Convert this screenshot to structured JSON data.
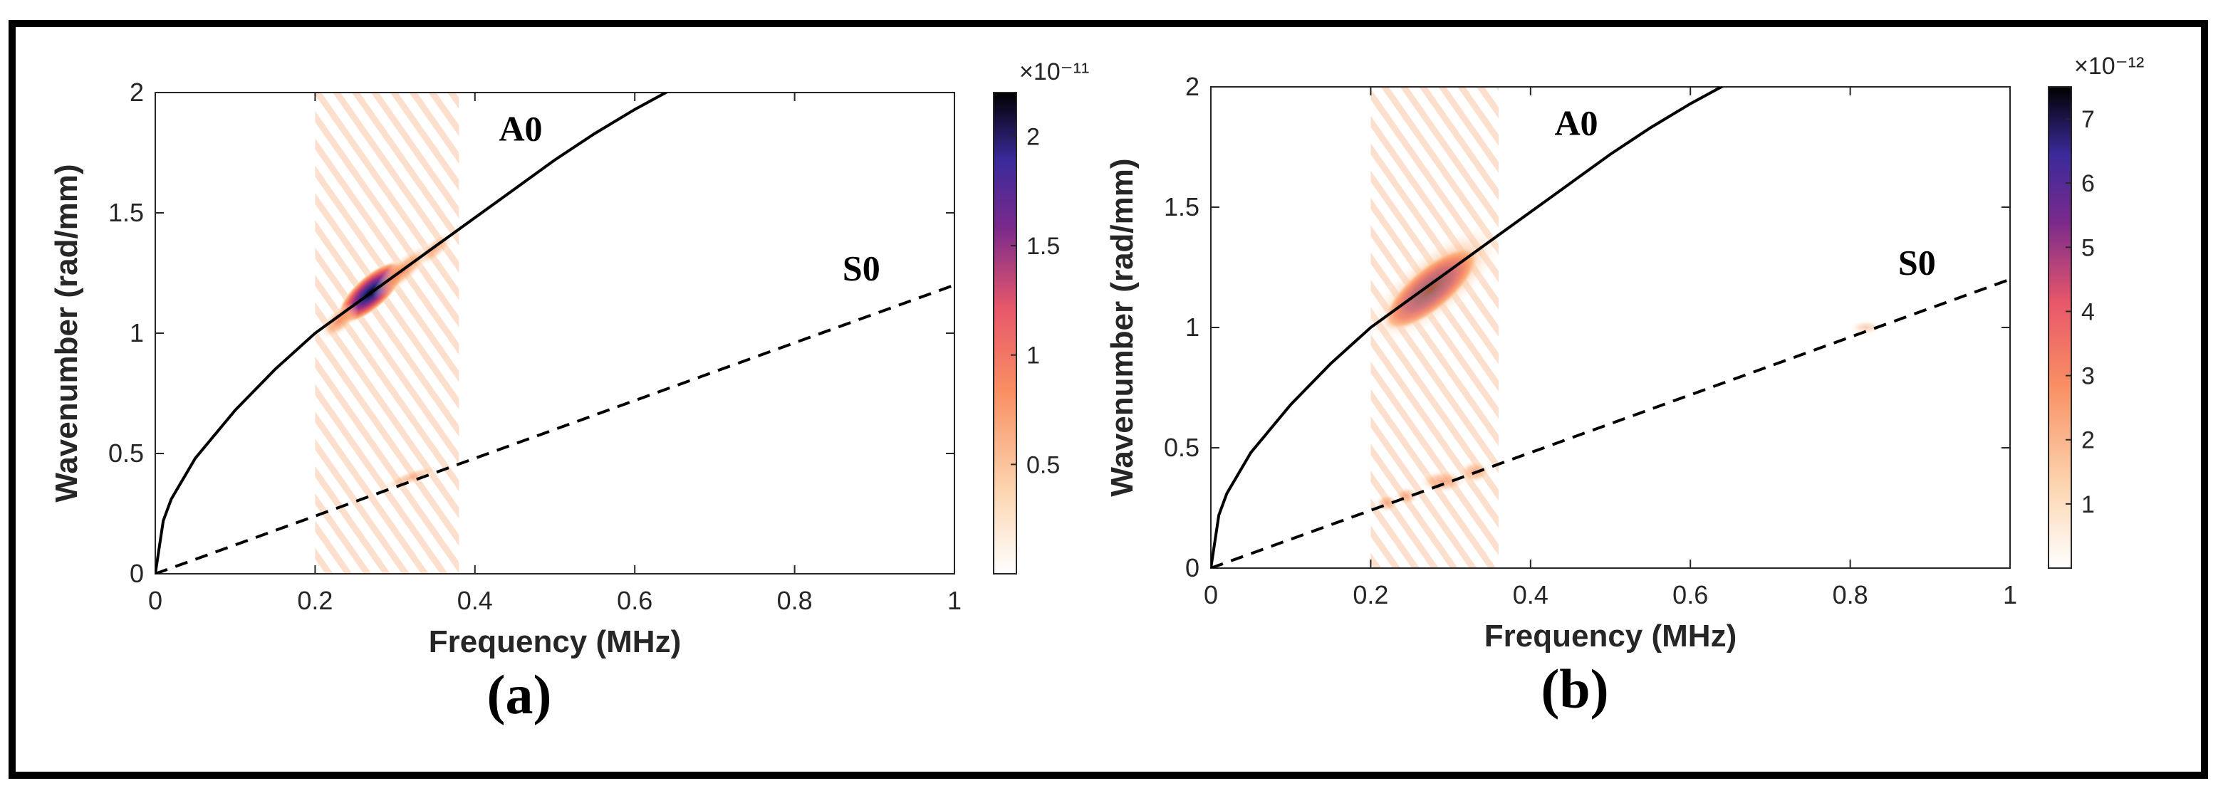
{
  "chart_data": [
    {
      "type": "heatmap",
      "panel_label": "(a)",
      "xlabel": "Frequency (MHz)",
      "ylabel": "Wavenumber (rad/mm)",
      "xlim": [
        0,
        1
      ],
      "ylim": [
        0,
        2
      ],
      "xticks": [
        "0",
        "0.2",
        "0.4",
        "0.6",
        "0.8",
        "1"
      ],
      "yticks": [
        "0",
        "0.5",
        "1",
        "1.5",
        "2"
      ],
      "colorbar": {
        "exponent": "×10⁻¹¹",
        "ticks": [
          "0.5",
          "1",
          "1.5",
          "2"
        ],
        "tick_values": [
          0.5,
          1,
          1.5,
          2
        ],
        "max": 2.2
      },
      "curves": [
        {
          "name": "A0",
          "style": "solid",
          "color": "#000000",
          "x": [
            0,
            0.01,
            0.02,
            0.05,
            0.1,
            0.15,
            0.2,
            0.25,
            0.3,
            0.35,
            0.4,
            0.45,
            0.5,
            0.55,
            0.6,
            0.65
          ],
          "y": [
            0,
            0.22,
            0.31,
            0.48,
            0.68,
            0.85,
            1.0,
            1.12,
            1.24,
            1.36,
            1.48,
            1.6,
            1.72,
            1.83,
            1.93,
            2.02
          ]
        },
        {
          "name": "S0",
          "style": "dashed",
          "color": "#000000",
          "x": [
            0,
            1
          ],
          "y": [
            0,
            1.2
          ]
        }
      ],
      "energy_band": {
        "f_range": [
          0.2,
          0.38
        ]
      },
      "energy_spots": [
        {
          "f": 0.27,
          "k": 1.17,
          "df": 0.055,
          "dk": 0.07,
          "level": 1.0,
          "angle": -42
        },
        {
          "f": 0.31,
          "k": 1.26,
          "df": 0.05,
          "dk": 0.05,
          "level": 0.55,
          "angle": -42
        },
        {
          "f": 0.23,
          "k": 1.05,
          "df": 0.03,
          "dk": 0.05,
          "level": 0.55,
          "angle": -42
        },
        {
          "f": 0.35,
          "k": 1.35,
          "df": 0.03,
          "dk": 0.04,
          "level": 0.3,
          "angle": -42
        },
        {
          "f": 0.32,
          "k": 0.4,
          "df": 0.04,
          "dk": 0.03,
          "level": 0.2,
          "angle": -20
        }
      ]
    },
    {
      "type": "heatmap",
      "panel_label": "(b)",
      "xlabel": "Frequency (MHz)",
      "ylabel": "Wavenumber (rad/mm)",
      "xlim": [
        0,
        1
      ],
      "ylim": [
        0,
        2
      ],
      "xticks": [
        "0",
        "0.2",
        "0.4",
        "0.6",
        "0.8",
        "1"
      ],
      "yticks": [
        "0",
        "0.5",
        "1",
        "1.5",
        "2"
      ],
      "colorbar": {
        "exponent": "×10⁻¹²",
        "ticks": [
          "1",
          "2",
          "3",
          "4",
          "5",
          "6",
          "7"
        ],
        "tick_values": [
          1,
          2,
          3,
          4,
          5,
          6,
          7
        ],
        "max": 7.5
      },
      "curves": [
        {
          "name": "A0",
          "style": "solid",
          "color": "#000000",
          "x": [
            0,
            0.01,
            0.02,
            0.05,
            0.1,
            0.15,
            0.2,
            0.25,
            0.3,
            0.35,
            0.4,
            0.45,
            0.5,
            0.55,
            0.6,
            0.65
          ],
          "y": [
            0,
            0.22,
            0.31,
            0.48,
            0.68,
            0.85,
            1.0,
            1.12,
            1.24,
            1.36,
            1.48,
            1.6,
            1.72,
            1.83,
            1.93,
            2.02
          ]
        },
        {
          "name": "S0",
          "style": "dashed",
          "color": "#000000",
          "x": [
            0,
            1
          ],
          "y": [
            0,
            1.2
          ]
        }
      ],
      "energy_band": {
        "f_range": [
          0.2,
          0.36
        ]
      },
      "energy_spots": [
        {
          "f": 0.275,
          "k": 1.16,
          "df": 0.075,
          "dk": 0.09,
          "level": 1.0,
          "angle": -40
        },
        {
          "f": 0.28,
          "k": 1.18,
          "df": 0.11,
          "dk": 0.14,
          "level": 0.35,
          "angle": -40
        },
        {
          "f": 0.22,
          "k": 0.27,
          "df": 0.015,
          "dk": 0.04,
          "level": 0.3,
          "angle": 0
        },
        {
          "f": 0.245,
          "k": 0.3,
          "df": 0.015,
          "dk": 0.04,
          "level": 0.3,
          "angle": 0
        },
        {
          "f": 0.29,
          "k": 0.36,
          "df": 0.03,
          "dk": 0.05,
          "level": 0.35,
          "angle": 0
        },
        {
          "f": 0.33,
          "k": 0.4,
          "df": 0.02,
          "dk": 0.05,
          "level": 0.35,
          "angle": 0
        },
        {
          "f": 0.82,
          "k": 1.0,
          "df": 0.02,
          "dk": 0.03,
          "level": 0.05,
          "angle": 0
        }
      ]
    }
  ]
}
